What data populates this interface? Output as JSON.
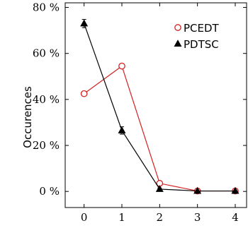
{
  "chart_data": {
    "type": "line",
    "title": "",
    "xlabel": "",
    "ylabel": "Occurences",
    "x": [
      0,
      1,
      2,
      3,
      4
    ],
    "xlim": [
      -0.5,
      4.3
    ],
    "ylim": [
      -7,
      82
    ],
    "x_ticks": [
      "0",
      "1",
      "2",
      "3",
      "4"
    ],
    "y_ticks": [
      {
        "value": 0,
        "label": "0 %"
      },
      {
        "value": 20,
        "label": "20 %"
      },
      {
        "value": 40,
        "label": "40 %"
      },
      {
        "value": 60,
        "label": "60 %"
      },
      {
        "value": 80,
        "label": "80 %"
      }
    ],
    "grid": false,
    "legend_position": "top-right",
    "series": [
      {
        "name": "PCEDT",
        "color": "#d42020",
        "line_color": "#d42020",
        "marker": "circle",
        "values": [
          42.5,
          54.5,
          3.5,
          0.2,
          0.2
        ],
        "errors": [
          0,
          0,
          0,
          0,
          0
        ]
      },
      {
        "name": "PDTSC",
        "color": "#000000",
        "line_color": "#000000",
        "marker": "triangle",
        "values": [
          73,
          26.5,
          1,
          0.2,
          0.2
        ],
        "errors": [
          1.8,
          1.6,
          0.5,
          0,
          0
        ]
      }
    ]
  }
}
